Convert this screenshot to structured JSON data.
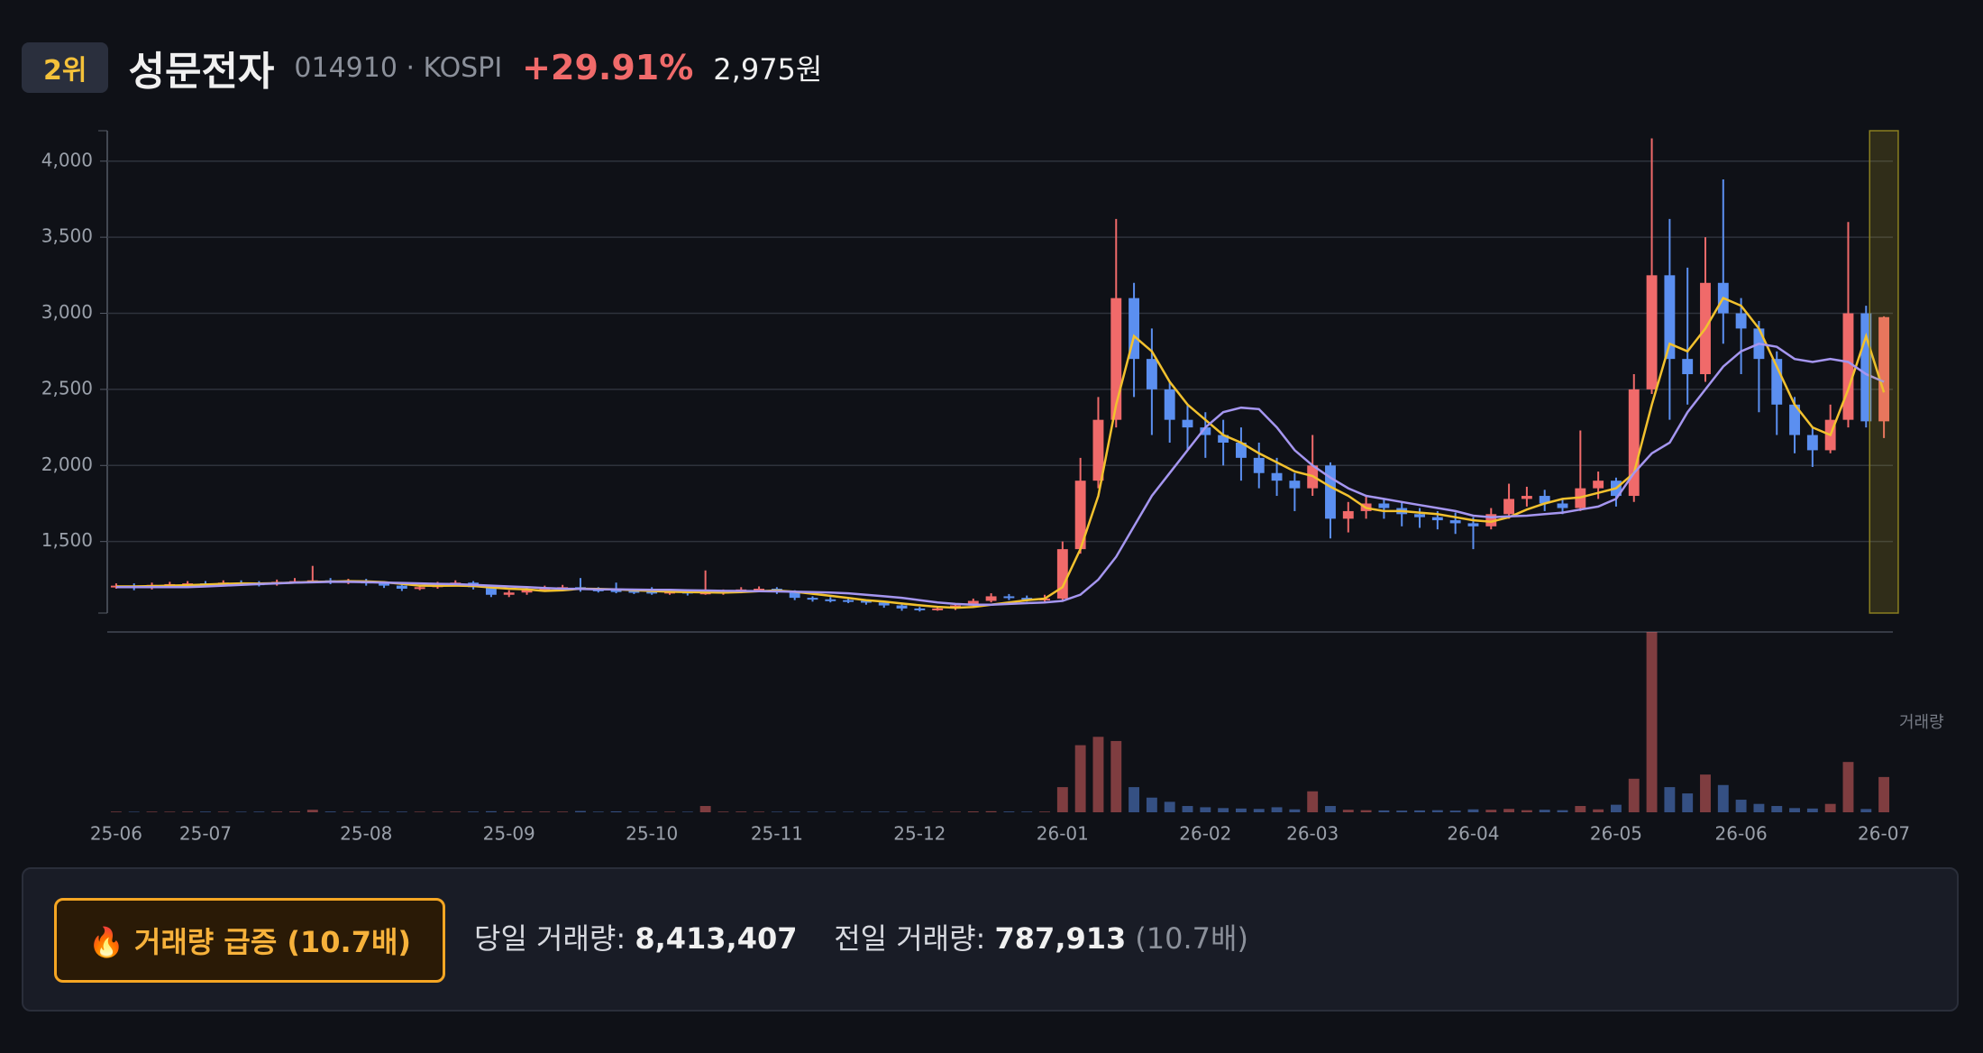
{
  "header": {
    "rank": "2위",
    "name": "성문전자",
    "code": "014910 · KOSPI",
    "change": "+29.91%",
    "price": "2,975원"
  },
  "chart_data": {
    "type": "candlestick",
    "categories": [
      "25-06",
      null,
      null,
      null,
      null,
      "25-07",
      null,
      null,
      null,
      null,
      null,
      null,
      null,
      null,
      "25-08",
      null,
      null,
      null,
      null,
      null,
      null,
      null,
      "25-09",
      null,
      null,
      null,
      null,
      null,
      null,
      null,
      "25-10",
      null,
      null,
      null,
      null,
      null,
      null,
      "25-11",
      null,
      null,
      null,
      null,
      null,
      null,
      null,
      "25-12",
      null,
      null,
      null,
      null,
      null,
      null,
      null,
      "26-01",
      null,
      null,
      null,
      null,
      null,
      null,
      null,
      "26-02",
      null,
      null,
      null,
      null,
      null,
      "26-03",
      null,
      null,
      null,
      null,
      null,
      null,
      null,
      null,
      "26-04",
      null,
      null,
      null,
      null,
      null,
      null,
      null,
      "26-05",
      null,
      null,
      null,
      null,
      null,
      null,
      "26-06",
      null,
      null,
      null,
      null,
      null,
      null,
      null,
      "26-07"
    ],
    "open": [
      1200,
      1210,
      1195,
      1215,
      1220,
      1225,
      1220,
      1230,
      1225,
      1220,
      1235,
      1240,
      1245,
      1235,
      1240,
      1225,
      1210,
      1190,
      1200,
      1220,
      1230,
      1200,
      1150,
      1165,
      1185,
      1190,
      1200,
      1185,
      1180,
      1175,
      1170,
      1165,
      1170,
      1160,
      1165,
      1170,
      1185,
      1190,
      1170,
      1130,
      1120,
      1115,
      1110,
      1100,
      1080,
      1060,
      1055,
      1060,
      1080,
      1110,
      1140,
      1130,
      1120,
      1125,
      1450,
      1900,
      2300,
      3100,
      2700,
      2500,
      2300,
      2250,
      2200,
      2150,
      2050,
      1950,
      1900,
      1850,
      2000,
      1650,
      1700,
      1750,
      1720,
      1680,
      1660,
      1640,
      1620,
      1600,
      1680,
      1780,
      1800,
      1750,
      1720,
      1850,
      1900,
      1800,
      2500,
      3250,
      2700,
      2600,
      3200,
      3000,
      2900,
      2700,
      2400,
      2200,
      2100,
      2300,
      3000,
      2290
    ],
    "high": [
      1225,
      1225,
      1230,
      1235,
      1240,
      1240,
      1245,
      1245,
      1240,
      1250,
      1260,
      1340,
      1260,
      1255,
      1255,
      1240,
      1225,
      1215,
      1235,
      1245,
      1240,
      1210,
      1180,
      1200,
      1210,
      1215,
      1260,
      1200,
      1230,
      1190,
      1200,
      1185,
      1180,
      1310,
      1185,
      1200,
      1205,
      1200,
      1180,
      1140,
      1135,
      1125,
      1120,
      1110,
      1090,
      1070,
      1075,
      1095,
      1125,
      1160,
      1155,
      1145,
      1150,
      1500,
      2050,
      2450,
      3620,
      3200,
      2900,
      2550,
      2400,
      2350,
      2300,
      2250,
      2150,
      2050,
      1950,
      2200,
      2020,
      1760,
      1800,
      1780,
      1760,
      1720,
      1700,
      1690,
      1660,
      1720,
      1880,
      1860,
      1840,
      1780,
      2230,
      1960,
      1920,
      2600,
      4150,
      3620,
      3300,
      3500,
      3880,
      3100,
      2950,
      2750,
      2450,
      2250,
      2400,
      3600,
      3050,
      2980
    ],
    "low": [
      1190,
      1180,
      1185,
      1205,
      1210,
      1205,
      1210,
      1210,
      1205,
      1210,
      1225,
      1230,
      1220,
      1220,
      1210,
      1195,
      1175,
      1180,
      1190,
      1205,
      1185,
      1135,
      1135,
      1150,
      1175,
      1180,
      1170,
      1165,
      1160,
      1155,
      1150,
      1150,
      1145,
      1150,
      1150,
      1160,
      1170,
      1155,
      1115,
      1105,
      1100,
      1095,
      1085,
      1065,
      1045,
      1040,
      1045,
      1050,
      1070,
      1100,
      1115,
      1105,
      1105,
      1110,
      1420,
      1850,
      2250,
      2450,
      2200,
      2150,
      2100,
      2050,
      2000,
      1900,
      1850,
      1800,
      1700,
      1800,
      1520,
      1560,
      1650,
      1650,
      1600,
      1590,
      1580,
      1550,
      1450,
      1580,
      1650,
      1730,
      1700,
      1680,
      1700,
      1780,
      1730,
      1760,
      2470,
      2300,
      2400,
      2550,
      2800,
      2600,
      2350,
      2200,
      2080,
      1990,
      2080,
      2250,
      2250,
      2180
    ],
    "close": [
      1210,
      1195,
      1215,
      1220,
      1225,
      1220,
      1230,
      1225,
      1220,
      1235,
      1240,
      1245,
      1235,
      1240,
      1225,
      1210,
      1190,
      1200,
      1220,
      1230,
      1200,
      1150,
      1165,
      1185,
      1190,
      1200,
      1185,
      1180,
      1175,
      1170,
      1165,
      1170,
      1160,
      1165,
      1170,
      1185,
      1190,
      1170,
      1130,
      1120,
      1115,
      1110,
      1100,
      1080,
      1060,
      1055,
      1060,
      1080,
      1110,
      1140,
      1130,
      1120,
      1125,
      1450,
      1900,
      2300,
      3100,
      2700,
      2500,
      2300,
      2250,
      2200,
      2150,
      2050,
      1950,
      1900,
      1850,
      2000,
      1650,
      1700,
      1750,
      1720,
      1680,
      1660,
      1640,
      1620,
      1600,
      1680,
      1780,
      1800,
      1750,
      1720,
      1850,
      1900,
      1800,
      2500,
      3250,
      2700,
      2600,
      3200,
      3000,
      2900,
      2700,
      2400,
      2200,
      2100,
      2300,
      3000,
      2290,
      2975
    ],
    "volume": [
      150000,
      120000,
      140000,
      130000,
      150000,
      160000,
      140000,
      130000,
      150000,
      170000,
      200000,
      600000,
      180000,
      150000,
      160000,
      140000,
      150000,
      130000,
      140000,
      150000,
      160000,
      250000,
      200000,
      180000,
      160000,
      150000,
      300000,
      140000,
      220000,
      130000,
      150000,
      140000,
      130000,
      1500000,
      150000,
      160000,
      140000,
      130000,
      150000,
      140000,
      130000,
      120000,
      130000,
      140000,
      150000,
      130000,
      120000,
      140000,
      200000,
      250000,
      180000,
      150000,
      160000,
      6000000,
      16000000,
      18000000,
      17000000,
      6000000,
      3500000,
      2500000,
      1500000,
      1200000,
      1000000,
      900000,
      800000,
      1200000,
      700000,
      5000000,
      1500000,
      600000,
      500000,
      450000,
      400000,
      450000,
      500000,
      400000,
      700000,
      600000,
      800000,
      500000,
      600000,
      500000,
      1500000,
      700000,
      1800000,
      8000000,
      43000000,
      6000000,
      4500000,
      9000000,
      6500000,
      3000000,
      2000000,
      1500000,
      1000000,
      900000,
      2000000,
      12000000,
      787913,
      8413407
    ],
    "ma5": [
      1205,
      1205,
      1207,
      1210,
      1213,
      1217,
      1222,
      1225,
      1224,
      1226,
      1230,
      1235,
      1237,
      1240,
      1238,
      1233,
      1222,
      1210,
      1209,
      1210,
      1208,
      1198,
      1190,
      1185,
      1175,
      1180,
      1190,
      1188,
      1185,
      1180,
      1175,
      1170,
      1168,
      1166,
      1164,
      1168,
      1174,
      1178,
      1170,
      1157,
      1143,
      1129,
      1115,
      1105,
      1093,
      1081,
      1071,
      1065,
      1070,
      1085,
      1100,
      1115,
      1125,
      1200,
      1450,
      1800,
      2400,
      2850,
      2750,
      2550,
      2400,
      2300,
      2200,
      2150,
      2080,
      2020,
      1960,
      1930,
      1860,
      1800,
      1720,
      1700,
      1700,
      1690,
      1680,
      1660,
      1640,
      1630,
      1660,
      1710,
      1750,
      1780,
      1790,
      1820,
      1850,
      1950,
      2400,
      2800,
      2750,
      2900,
      3100,
      3050,
      2900,
      2650,
      2400,
      2250,
      2200,
      2500,
      2850,
      2480
    ],
    "ma20": [
      1200,
      1200,
      1200,
      1200,
      1200,
      1205,
      1210,
      1215,
      1220,
      1225,
      1230,
      1232,
      1235,
      1235,
      1233,
      1230,
      1228,
      1225,
      1222,
      1220,
      1215,
      1210,
      1205,
      1200,
      1195,
      1190,
      1188,
      1186,
      1185,
      1184,
      1183,
      1182,
      1180,
      1178,
      1176,
      1175,
      1174,
      1172,
      1170,
      1168,
      1165,
      1160,
      1150,
      1140,
      1130,
      1115,
      1100,
      1090,
      1085,
      1085,
      1090,
      1095,
      1100,
      1110,
      1150,
      1250,
      1400,
      1600,
      1800,
      1950,
      2100,
      2250,
      2350,
      2380,
      2370,
      2250,
      2100,
      2000,
      1920,
      1850,
      1800,
      1780,
      1760,
      1740,
      1720,
      1700,
      1670,
      1660,
      1665,
      1670,
      1680,
      1690,
      1710,
      1730,
      1780,
      1950,
      2080,
      2150,
      2350,
      2500,
      2650,
      2750,
      2800,
      2780,
      2700,
      2680,
      2700,
      2680,
      2600,
      2550
    ],
    "ylim": [
      1030,
      4200
    ],
    "yticks": [
      {
        "value": 1500,
        "label": "1,500"
      },
      {
        "value": 2000,
        "label": "2,000"
      },
      {
        "value": 2500,
        "label": "2,500"
      },
      {
        "value": 3000,
        "label": "3,000"
      },
      {
        "value": 3500,
        "label": "3,500"
      },
      {
        "value": 4000,
        "label": "4,000"
      }
    ],
    "volume_ylim": [
      0,
      43000000
    ],
    "volume_label": "거래량",
    "grid": true,
    "up_color": "#f06a6a",
    "down_color": "#5b8ff0",
    "ma5_color": "#f2c12e",
    "ma20_color": "#a596f0"
  },
  "alert": {
    "badge": "🔥 거래량 급증 (10.7배)",
    "today_label": "당일 거래량:",
    "today_value": "8,413,407",
    "prev_label": "전일 거래량:",
    "prev_value": "787,913",
    "ratio": "(10.7배)"
  }
}
